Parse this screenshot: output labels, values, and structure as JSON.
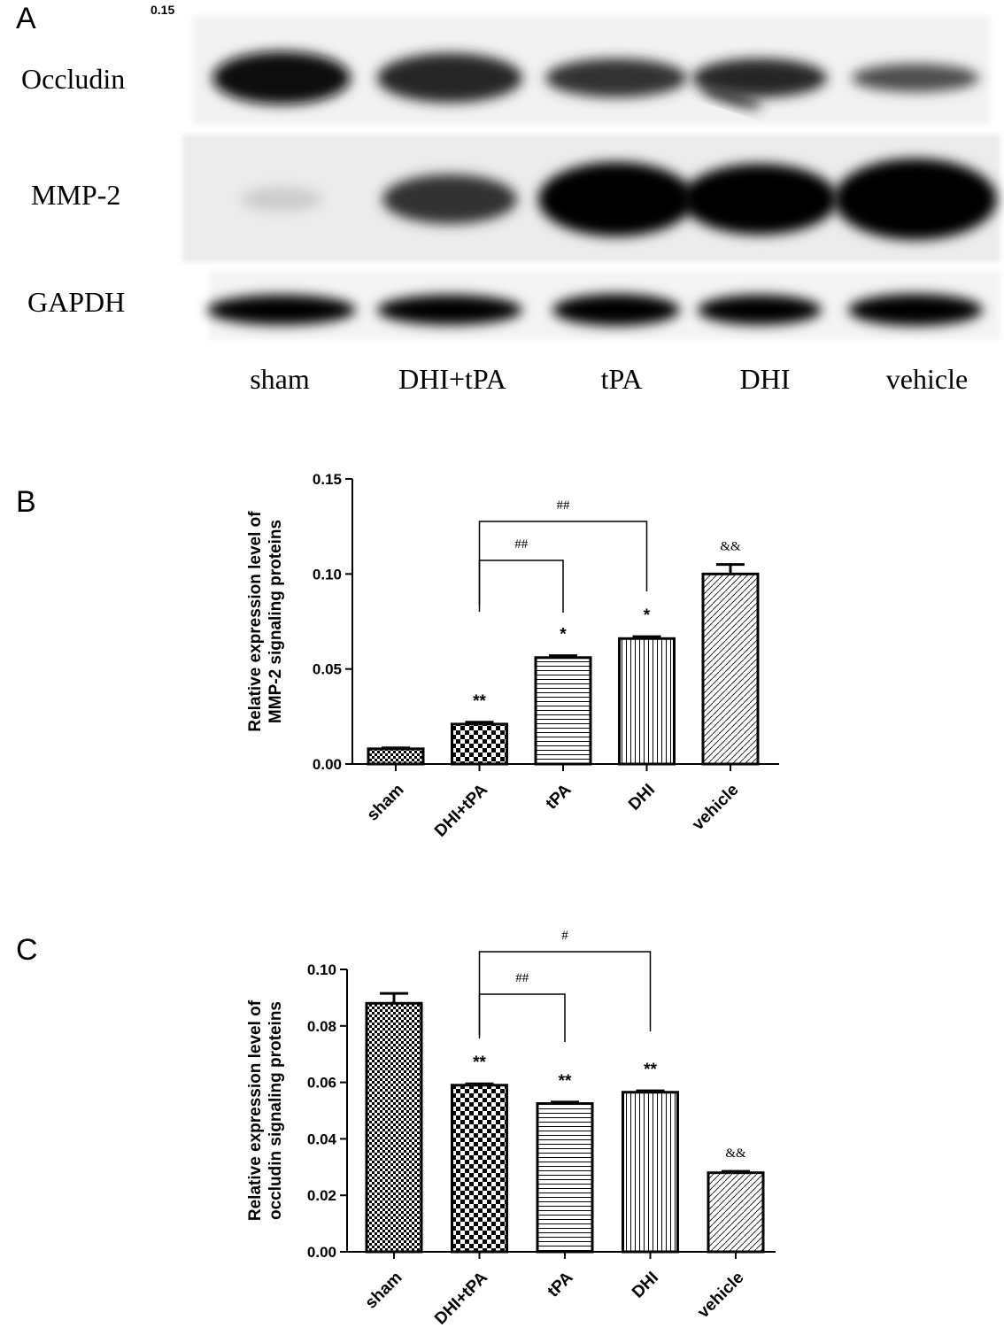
{
  "panels": {
    "A": "A",
    "B": "B",
    "C": "C"
  },
  "blot_residue": {
    "left": "",
    "right": "0.15"
  },
  "blot": {
    "rows": [
      {
        "label": "Occludin",
        "intensities": [
          0.95,
          0.85,
          0.8,
          0.85,
          0.7
        ]
      },
      {
        "label": "MMP-2",
        "intensities": [
          0.2,
          0.8,
          1.0,
          1.0,
          1.0
        ]
      },
      {
        "label": "GAPDH",
        "intensities": [
          1.0,
          1.0,
          1.0,
          1.0,
          1.0
        ]
      }
    ],
    "lanes": [
      "sham",
      "DHI+tPA",
      "tPA",
      "DHI",
      "vehicle"
    ]
  },
  "chart_data": [
    {
      "type": "bar",
      "panel": "B",
      "categories": [
        "sham",
        "DHI+tPA",
        "tPA",
        "DHI",
        "vehicle"
      ],
      "values": [
        0.008,
        0.021,
        0.056,
        0.066,
        0.1
      ],
      "errors": [
        0.0005,
        0.001,
        0.001,
        0.001,
        0.005
      ],
      "patterns": [
        "pattern-fine-check",
        "pattern-coarse-check",
        "pattern-hlines",
        "pattern-vlines",
        "pattern-diag"
      ],
      "ylabel": [
        "Relative expression level of",
        "MMP-2 signaling proteins"
      ],
      "ylim": [
        0,
        0.15
      ],
      "yticks": [
        "0.00",
        "0.05",
        "0.10",
        "0.15"
      ],
      "ytick_values": [
        0,
        0.05,
        0.1,
        0.15
      ],
      "bar_labels": [
        "",
        "**",
        "*",
        "*",
        "&&"
      ],
      "brackets": [
        {
          "from": 1,
          "to": 2,
          "label": "##"
        },
        {
          "from": 1,
          "to": 3,
          "label": "##"
        }
      ]
    },
    {
      "type": "bar",
      "panel": "C",
      "categories": [
        "sham",
        "DHI+tPA",
        "tPA",
        "DHI",
        "vehicle"
      ],
      "values": [
        0.088,
        0.059,
        0.0525,
        0.0565,
        0.028
      ],
      "errors": [
        0.0035,
        0.0005,
        0.0005,
        0.0005,
        0.0005
      ],
      "patterns": [
        "pattern-fine-check",
        "pattern-coarse-check",
        "pattern-hlines",
        "pattern-vlines",
        "pattern-diag"
      ],
      "ylabel": [
        "Relative expression level of",
        "occludin signaling proteins"
      ],
      "ylim": [
        0,
        0.1
      ],
      "yticks": [
        "0.00",
        "0.02",
        "0.04",
        "0.06",
        "0.08",
        "0.10"
      ],
      "ytick_values": [
        0,
        0.02,
        0.04,
        0.06,
        0.08,
        0.1
      ],
      "bar_labels": [
        "",
        "**",
        "**",
        "**",
        "&&"
      ],
      "brackets": [
        {
          "from": 1,
          "to": 2,
          "label": "##"
        },
        {
          "from": 1,
          "to": 3,
          "label": "#"
        }
      ]
    }
  ]
}
